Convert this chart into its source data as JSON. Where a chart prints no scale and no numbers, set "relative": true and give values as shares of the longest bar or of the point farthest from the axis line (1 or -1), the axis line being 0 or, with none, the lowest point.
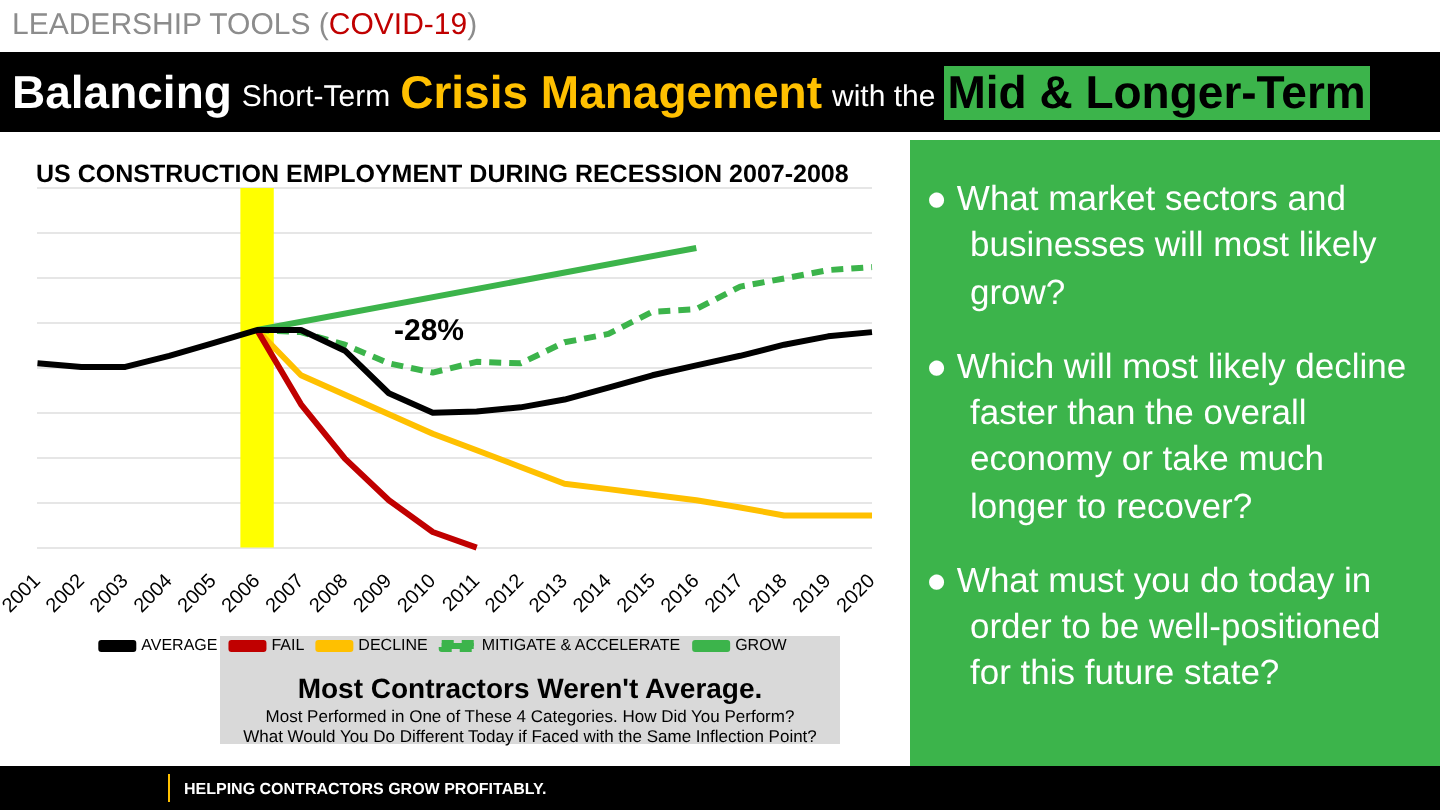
{
  "chart_data": {
    "type": "line",
    "title": "US CONSTRUCTION EMPLOYMENT DURING RECESSION 2007-2008",
    "relative": true,
    "grid": "y",
    "legend": "bottom",
    "marker": "none",
    "categories": [
      "2001",
      "2002",
      "2003",
      "2004",
      "2005",
      "2006",
      "2007",
      "2008",
      "2009",
      "2010",
      "2011",
      "2012",
      "2013",
      "2014",
      "2015",
      "2016",
      "2017",
      "2018",
      "2019",
      "2020"
    ],
    "series": [
      {
        "name": "AVERAGE",
        "color": "#000000",
        "line_style": "solid",
        "values": [
          0.615,
          0.603,
          0.603,
          0.64,
          0.682,
          0.726,
          0.726,
          0.657,
          0.515,
          0.45,
          0.454,
          0.468,
          0.494,
          0.534,
          0.575,
          0.608,
          0.64,
          0.677,
          0.705,
          0.719
        ]
      },
      {
        "name": "FAIL",
        "color": "#c00000",
        "line_style": "solid",
        "values": [
          null,
          null,
          null,
          null,
          null,
          0.726,
          0.478,
          0.297,
          0.158,
          0.052,
          0,
          null,
          null,
          null,
          null,
          null,
          null,
          null,
          null,
          null
        ]
      },
      {
        "name": "DECLINE",
        "color": "#ffc000",
        "line_style": "solid",
        "values": [
          null,
          null,
          null,
          null,
          null,
          0.726,
          0.575,
          0.51,
          0.445,
          0.38,
          0.325,
          0.269,
          0.213,
          0.195,
          0.176,
          0.158,
          0.134,
          0.107,
          0.107,
          0.107
        ]
      },
      {
        "name": "MITIGATE & ACCELERATE",
        "color": "#3cb44b",
        "line_style": "dashed",
        "values": [
          null,
          null,
          null,
          null,
          null,
          0.726,
          0.719,
          0.677,
          0.615,
          0.584,
          0.62,
          0.615,
          0.685,
          0.713,
          0.787,
          0.796,
          0.871,
          0.898,
          0.926,
          0.936
        ]
      },
      {
        "name": "GROW",
        "color": "#3cb44b",
        "line_style": "solid",
        "values": [
          null,
          null,
          null,
          null,
          null,
          0.726,
          null,
          null,
          null,
          null,
          null,
          null,
          null,
          null,
          null,
          1,
          null,
          null,
          null,
          null
        ]
      }
    ],
    "bands": [
      {
        "axis": "x",
        "from": "2006",
        "to": "2006",
        "color": "#ffff00"
      }
    ],
    "annotations": [
      "LEADERSHIP TOOLS (",
      "COVID-19",
      ")",
      "Balancing",
      "Short-Term",
      "Crisis Management",
      "with the",
      "Mid & Longer-Term",
      "-28%",
      "Most Contractors Weren't Average.",
      "Most Performed in One of These 4 Categories.  How Did You Perform?",
      "What Would You Do Different Today if Faced with the Same Inflection Point?",
      "● What market sectors and businesses will most likely grow?",
      "● Which will most likely decline faster than the overall economy or take much longer to recover?",
      "● What must you do today in order to be well-positioned for this future state?",
      "HELPING CONTRACTORS GROW PROFITABLY."
    ]
  }
}
